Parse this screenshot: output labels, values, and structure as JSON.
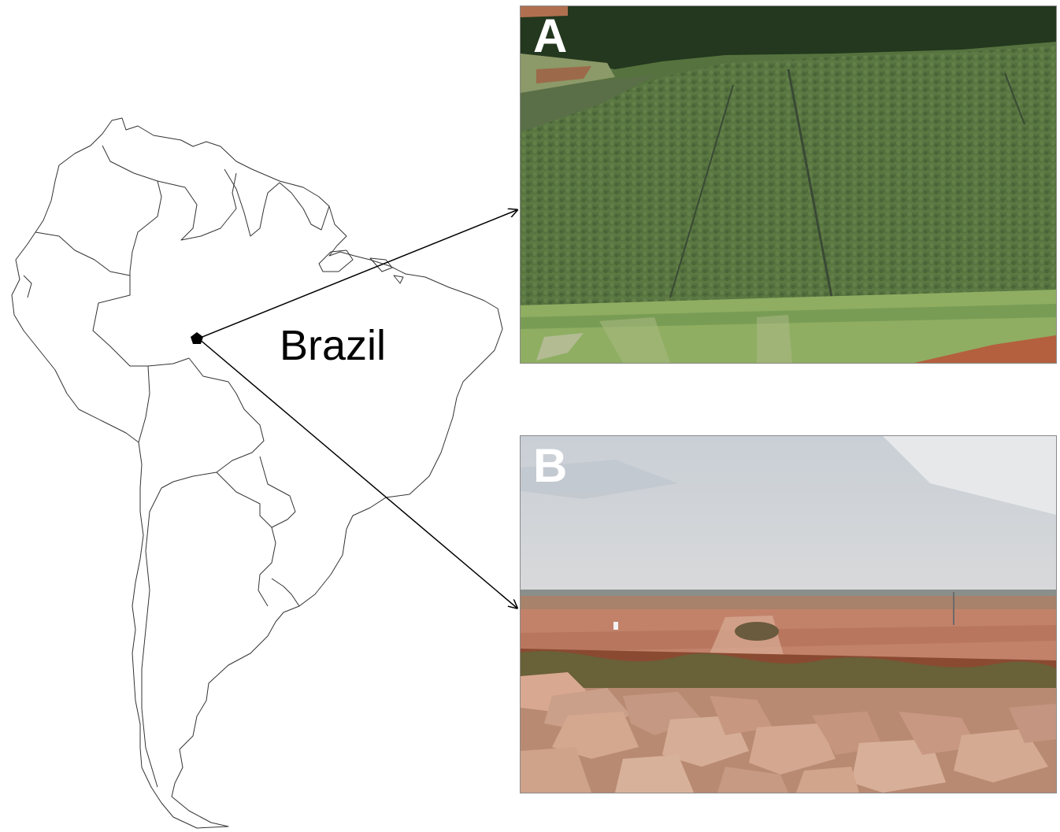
{
  "map": {
    "country_label": "Brazil",
    "marker_icon": "pentagon-location-marker"
  },
  "panels": [
    {
      "letter": "A"
    },
    {
      "letter": "B"
    }
  ],
  "colors": {
    "outline": "#333333",
    "arrow": "#000000",
    "panel_letter": "#ffffff"
  }
}
